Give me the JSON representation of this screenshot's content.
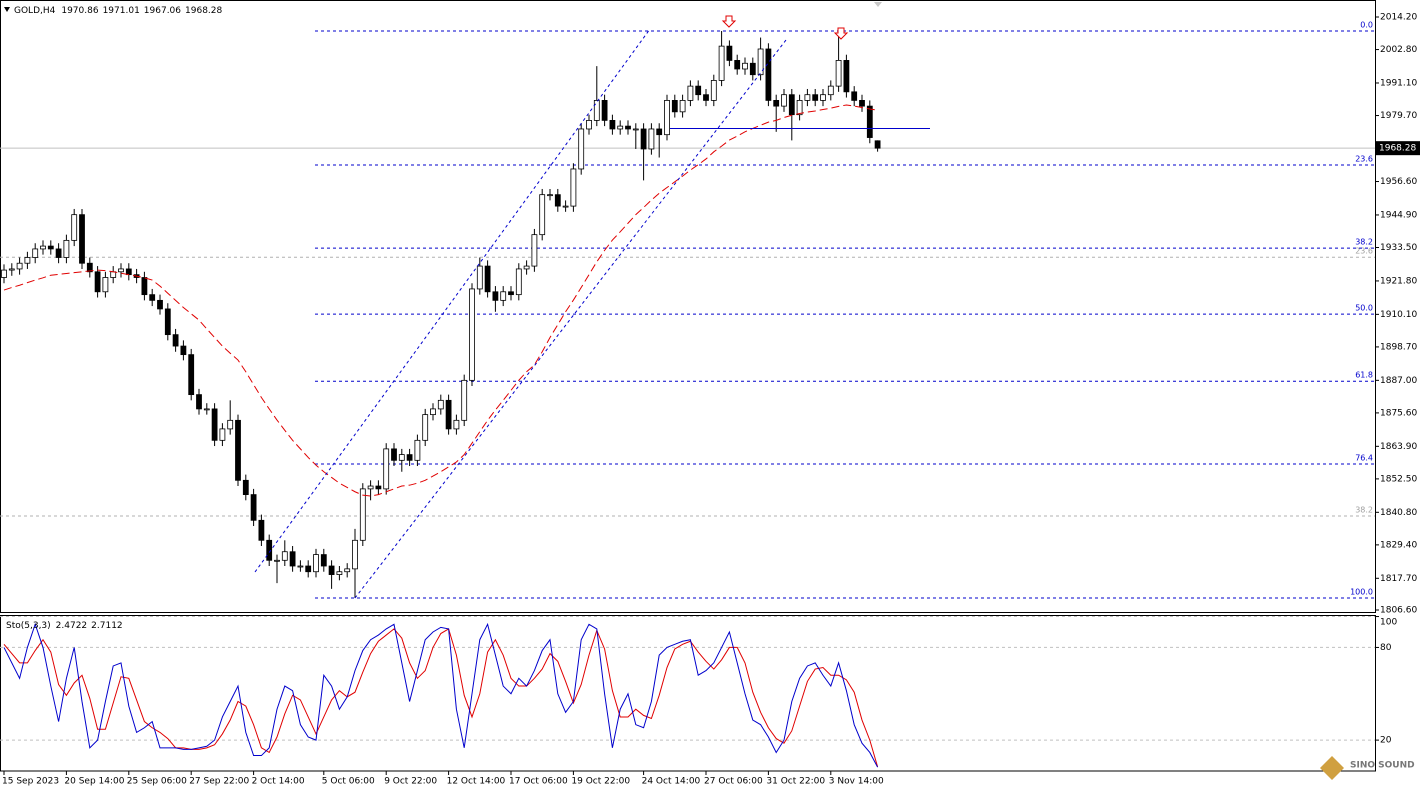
{
  "chart_data": [
    {
      "type": "candlestick",
      "title": "GOLD,H4",
      "categories": [
        "15 Sep 2023",
        null,
        null,
        null,
        null,
        null,
        null,
        null,
        "20 Sep 14:00",
        null,
        null,
        null,
        null,
        null,
        null,
        null,
        "25 Sep 06:00",
        null,
        null,
        null,
        null,
        null,
        null,
        null,
        "27 Sep 22:00",
        null,
        null,
        null,
        null,
        null,
        null,
        null,
        "2 Oct 14:00",
        null,
        null,
        null,
        null,
        null,
        null,
        null,
        null,
        "5 Oct 06:00",
        null,
        null,
        null,
        null,
        null,
        null,
        null,
        "9 Oct 22:00",
        null,
        null,
        null,
        null,
        null,
        null,
        null,
        "12 Oct 14:00",
        null,
        null,
        null,
        null,
        null,
        null,
        null,
        "17 Oct 06:00",
        null,
        null,
        null,
        null,
        null,
        null,
        null,
        "19 Oct 22:00",
        null,
        null,
        null,
        null,
        null,
        null,
        null,
        null,
        "24 Oct 14:00",
        null,
        null,
        null,
        null,
        null,
        null,
        null,
        "27 Oct 06:00",
        null,
        null,
        null,
        null,
        null,
        null,
        null,
        "31 Oct 22:00",
        null,
        null,
        null,
        null,
        null,
        null,
        null,
        "3 Nov 14:00",
        null,
        null,
        null,
        null,
        null,
        null
      ],
      "open": [
        1923,
        1925.6,
        1926,
        1928,
        1930,
        1933,
        1934,
        1933,
        1930,
        1936,
        1945,
        1928,
        1925,
        1918,
        1923,
        1925,
        1926,
        1924,
        1923,
        1917,
        1915,
        1912,
        1903,
        1899,
        1896,
        1882,
        1877,
        1877,
        1866,
        1870,
        1873,
        1852,
        1847,
        1838,
        1831,
        1824,
        1824,
        1827,
        1822,
        1822,
        1820,
        1826,
        1822,
        1819,
        1820,
        1821,
        1831,
        1849,
        1850,
        1849,
        1863,
        1859,
        1861,
        1859,
        1866,
        1875,
        1877,
        1880,
        1870,
        1873,
        1887,
        1919,
        1927,
        1918,
        1915,
        1918,
        1917,
        1926,
        1927,
        1938,
        1952,
        1952,
        1948,
        1948,
        1961,
        1975,
        1978,
        1985,
        1978,
        1975,
        1976,
        1975,
        1975,
        1968,
        1975,
        1973,
        1985,
        1981,
        1985,
        1990,
        1987,
        1985,
        1992,
        2004,
        1999,
        1996,
        1998,
        1994,
        2003,
        1985,
        1983,
        1987,
        1980,
        1985,
        1987,
        1985,
        1987,
        1990,
        1999,
        1988,
        1985,
        1983,
        1970.86
      ],
      "high": [
        1927.6,
        1928,
        1930,
        1932,
        1935,
        1936,
        1936,
        1935,
        1938,
        1947,
        1947,
        1930,
        1927,
        1925,
        1927,
        1928,
        1928,
        1926,
        1925,
        1919,
        1917,
        1914,
        1905,
        1901,
        1898,
        1884,
        1879,
        1879,
        1872,
        1880,
        1875,
        1854,
        1849,
        1840,
        1833,
        1826,
        1831,
        1829,
        1824,
        1824,
        1828,
        1828,
        1824,
        1822,
        1823,
        1835,
        1851,
        1852,
        1852,
        1865,
        1865,
        1863,
        1863,
        1868,
        1877,
        1879,
        1882,
        1882,
        1875,
        1889,
        1921,
        1930,
        1929,
        1920,
        1920,
        1920,
        1928,
        1929,
        1940,
        1954,
        1954,
        1954,
        1950,
        1963,
        1977,
        1980,
        1997,
        1987,
        1980,
        1978,
        1978,
        1977,
        1977,
        1977,
        1977,
        1987,
        1987,
        1987,
        1992,
        1992,
        1989,
        1994,
        2009.3,
        2006,
        2001,
        2000,
        2000,
        2007,
        2005,
        1987,
        1989,
        1989,
        1987,
        1989,
        1989,
        1989,
        1992,
        2009,
        2001,
        1990,
        1987,
        1985,
        1971.01
      ],
      "low": [
        1921,
        1923.6,
        1924,
        1926,
        1928,
        1931,
        1931,
        1928,
        1928,
        1934,
        1926,
        1923,
        1916,
        1916,
        1921,
        1923,
        1922,
        1921,
        1915,
        1913,
        1910,
        1901,
        1897,
        1894,
        1880,
        1875,
        1875,
        1864,
        1864,
        1868,
        1850,
        1845,
        1836,
        1829,
        1822,
        1816,
        1822,
        1820,
        1820,
        1818,
        1818,
        1820,
        1814,
        1817,
        1818,
        1810.8,
        1829,
        1845,
        1847,
        1847,
        1857,
        1855,
        1857,
        1857,
        1864,
        1873,
        1875,
        1868,
        1868,
        1871,
        1885,
        1917,
        1916,
        1911,
        1913,
        1915,
        1915,
        1924,
        1925,
        1936,
        1950,
        1946,
        1946,
        1946,
        1959,
        1973,
        1976,
        1976,
        1973,
        1973,
        1973,
        1968,
        1957,
        1966,
        1965,
        1971,
        1979,
        1979,
        1983,
        1985,
        1983,
        1983,
        1990,
        1997,
        1994,
        1994,
        1992,
        1992,
        1983,
        1974,
        1981,
        1971,
        1978,
        1983,
        1983,
        1983,
        1985,
        1988,
        1986,
        1983,
        1981,
        1970,
        1967.06
      ],
      "close": [
        1925.6,
        1926,
        1928,
        1930,
        1933,
        1934,
        1933,
        1930,
        1936,
        1945,
        1928,
        1925,
        1918,
        1923,
        1925,
        1926,
        1924,
        1923,
        1917,
        1915,
        1912,
        1903,
        1899,
        1896,
        1882,
        1877,
        1877,
        1866,
        1870,
        1873,
        1852,
        1847,
        1838,
        1831,
        1824,
        1824,
        1827,
        1822,
        1822,
        1820,
        1826,
        1822,
        1819,
        1820,
        1821,
        1831,
        1849,
        1850,
        1849,
        1863,
        1859,
        1861,
        1859,
        1866,
        1875,
        1877,
        1880,
        1870,
        1873,
        1887,
        1919,
        1927,
        1918,
        1915,
        1918,
        1917,
        1926,
        1927,
        1938,
        1952,
        1952,
        1948,
        1948,
        1961,
        1975,
        1978,
        1985,
        1978,
        1975,
        1976,
        1975,
        1975,
        1968,
        1975,
        1973,
        1985,
        1981,
        1985,
        1990,
        1987,
        1985,
        1992,
        2004,
        1999,
        1996,
        1998,
        1994,
        2003,
        1985,
        1983,
        1987,
        1980,
        1985,
        1987,
        1985,
        1987,
        1990,
        1999,
        1988,
        1985,
        1983,
        1972,
        1968.28
      ],
      "series": [
        {
          "color": "#e00000",
          "line_style": "dashed",
          "values": [
            1918.6,
            1919.5,
            1920.3,
            1921.2,
            1922.1,
            1922.9,
            1923.8,
            1924.1,
            1924.4,
            1924.7,
            1925,
            1925.3,
            1925.6,
            1925.4,
            1925,
            1924.5,
            1924,
            1923.5,
            1922.9,
            1922.1,
            1920,
            1917.5,
            1915,
            1912.5,
            1910.3,
            1908.1,
            1905,
            1902,
            1899,
            1896.5,
            1894.1,
            1890,
            1885.5,
            1881,
            1877,
            1873.1,
            1869.5,
            1866,
            1863,
            1860,
            1857.3,
            1855,
            1853,
            1851,
            1849.5,
            1848,
            1846.8,
            1846.5,
            1847,
            1848,
            1849,
            1850,
            1850.3,
            1851,
            1852,
            1853.5,
            1855,
            1856.7,
            1858.4,
            1861,
            1865,
            1869,
            1873,
            1876.6,
            1880,
            1883.5,
            1887,
            1890,
            1892.4,
            1897,
            1902,
            1906.5,
            1911,
            1915.1,
            1919.5,
            1924,
            1928.5,
            1932.5,
            1936.1,
            1939,
            1942,
            1945,
            1947.5,
            1950.1,
            1952.5,
            1954.5,
            1956.5,
            1958.5,
            1960.6,
            1962.5,
            1964.5,
            1967,
            1969,
            1971.1,
            1972.5,
            1974,
            1975.2,
            1976.3,
            1977.4,
            1978,
            1979,
            1979.8,
            1980.4,
            1980.9,
            1981.3,
            1981.8,
            1982.3,
            1982.9,
            1983.4,
            1983,
            1982.5,
            1982,
            1981.6
          ]
        }
      ],
      "ylim": [
        1805.9,
        2019.1
      ],
      "yticks": [
        {
          "value": 2014.2,
          "label": "2014.20"
        },
        {
          "value": 2002.8,
          "label": "2002.80"
        },
        {
          "value": 1991.1,
          "label": "1991.10"
        },
        {
          "value": 1979.7,
          "label": "1979.70"
        },
        {
          "value": 1956.6,
          "label": "1956.60"
        },
        {
          "value": 1944.9,
          "label": "1944.90"
        },
        {
          "value": 1933.5,
          "label": "1933.50"
        },
        {
          "value": 1921.8,
          "label": "1921.80"
        },
        {
          "value": 1910.1,
          "label": "1910.10"
        },
        {
          "value": 1898.7,
          "label": "1898.70"
        },
        {
          "value": 1887,
          "label": "1887.00"
        },
        {
          "value": 1875.6,
          "label": "1875.60"
        },
        {
          "value": 1863.9,
          "label": "1863.90"
        },
        {
          "value": 1852.5,
          "label": "1852.50"
        },
        {
          "value": 1840.8,
          "label": "1840.80"
        },
        {
          "value": 1829.4,
          "label": "1829.40"
        },
        {
          "value": 1817.7,
          "label": "1817.70"
        },
        {
          "value": 1806.6,
          "label": "1806.60"
        }
      ],
      "fib_levels": [
        {
          "label": "0.0",
          "price": 2009.3
        },
        {
          "label": "23.6",
          "price": 1962.4
        },
        {
          "label": "38.2",
          "price": 1933.3
        },
        {
          "label": "50.0",
          "price": 1910.2
        },
        {
          "label": "61.8",
          "price": 1886.7
        },
        {
          "label": "76.4",
          "price": 1857.7
        },
        {
          "label": "100.0",
          "price": 1810.8
        }
      ],
      "fib_levels_old": [
        {
          "label": "23.6",
          "price": 1930.1
        },
        {
          "label": "38.2",
          "price": 1839.5
        }
      ],
      "grid": false
    },
    {
      "type": "line",
      "title": "Sto(5,3,3)",
      "series": [
        {
          "color": "#0000cc",
          "values": [
            80,
            70,
            60,
            80,
            95,
            80,
            55,
            32,
            60,
            80,
            45,
            15,
            20,
            45,
            68,
            70,
            42,
            25,
            28,
            32,
            15,
            15,
            15,
            14,
            14,
            15,
            16,
            20,
            35,
            45,
            55,
            25,
            10,
            10,
            15,
            40,
            55,
            52,
            30,
            22,
            20,
            62,
            55,
            40,
            48,
            65,
            78,
            85,
            88,
            92,
            95,
            70,
            45,
            65,
            85,
            90,
            93,
            92,
            40,
            15,
            50,
            85,
            95,
            75,
            55,
            50,
            60,
            55,
            65,
            78,
            85,
            50,
            38,
            45,
            85,
            95,
            92,
            50,
            15,
            40,
            50,
            30,
            28,
            45,
            75,
            80,
            82,
            84,
            85,
            62,
            65,
            70,
            80,
            90,
            70,
            50,
            33,
            30,
            22,
            12,
            20,
            45,
            60,
            68,
            70,
            62,
            55,
            70,
            52,
            30,
            18,
            12,
            2.4722
          ]
        },
        {
          "color": "#e00000",
          "values": [
            82,
            76,
            70,
            70,
            78,
            85,
            77,
            56,
            49,
            57,
            62,
            47,
            27,
            27,
            44,
            61,
            60,
            46,
            32,
            28,
            25,
            21,
            15,
            15,
            14,
            14,
            15,
            17,
            24,
            33,
            45,
            42,
            30,
            15,
            12,
            22,
            37,
            49,
            46,
            35,
            24,
            35,
            46,
            52,
            48,
            51,
            64,
            76,
            84,
            88,
            92,
            86,
            70,
            60,
            65,
            80,
            89,
            92,
            75,
            49,
            35,
            50,
            77,
            85,
            75,
            60,
            55,
            55,
            60,
            66,
            76,
            71,
            58,
            44,
            56,
            75,
            91,
            79,
            52,
            35,
            35,
            40,
            36,
            34,
            49,
            67,
            79,
            82,
            84,
            77,
            71,
            66,
            72,
            80,
            80,
            70,
            51,
            38,
            28,
            21,
            18,
            26,
            42,
            58,
            66,
            67,
            62,
            62,
            59,
            51,
            33,
            20,
            2.7112
          ]
        }
      ],
      "ylim": [
        0,
        101
      ],
      "yticks": [
        100,
        80,
        20
      ],
      "grid": true
    }
  ],
  "watermark": "SINO SOUND"
}
